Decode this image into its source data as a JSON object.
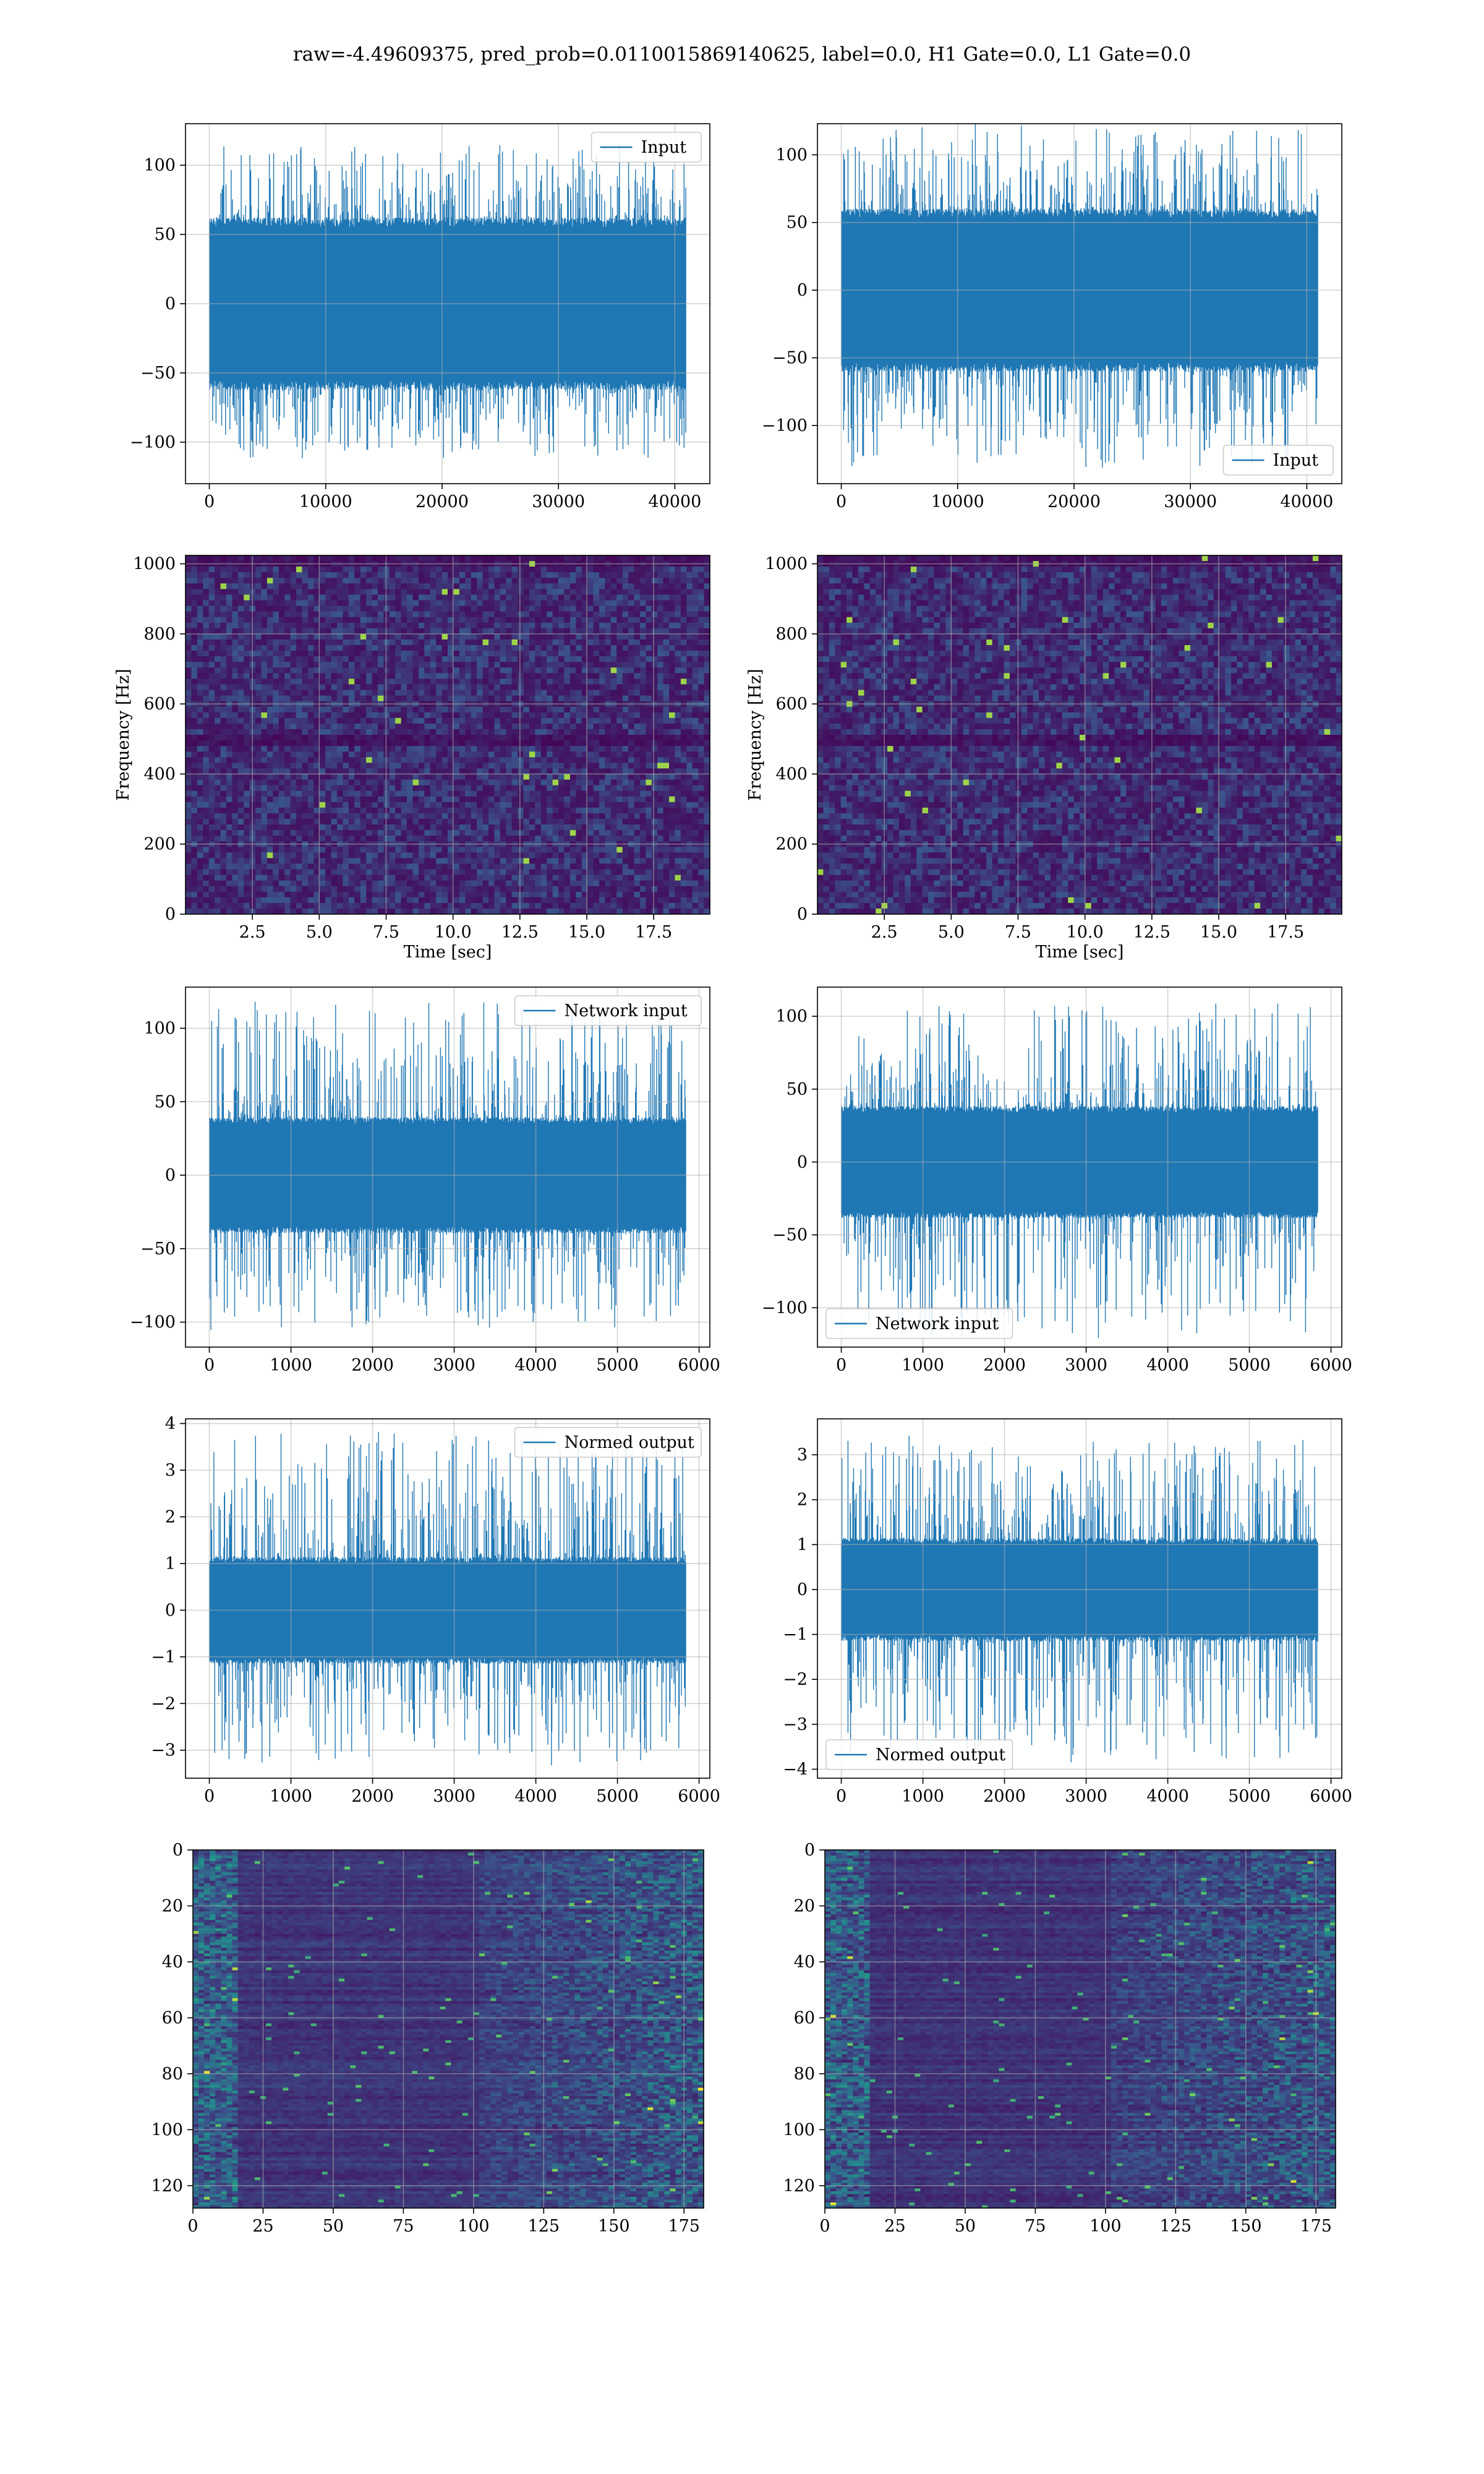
{
  "figure": {
    "title": "raw=-4.49609375, pred_prob=0.0110015869140625, label=0.0, H1 Gate=0.0, L1 Gate=0.0"
  },
  "colors": {
    "line": "#1f77b4",
    "grid": "#b0b0b0",
    "viridis_dark": "#440154",
    "viridis_mid": "#21918c",
    "viridis_bright": "#fde725"
  },
  "chart_data": [
    {
      "id": "h1-input",
      "type": "line",
      "title": "",
      "xlabel": "",
      "ylabel": "",
      "series": [
        {
          "name": "Input",
          "n_samples": 40960,
          "typical_envelope": [
            -60,
            60
          ],
          "peak_range": [
            -112,
            114
          ]
        }
      ],
      "xlim": [
        -2048,
        43008
      ],
      "ylim": [
        -130,
        130
      ],
      "xticks": [
        0,
        10000,
        20000,
        30000,
        40000
      ],
      "xtick_labels": [
        "0",
        "10000",
        "20000",
        "30000",
        "40000"
      ],
      "yticks": [
        -100,
        -50,
        0,
        50,
        100
      ],
      "ytick_labels": [
        "−100",
        "−50",
        "0",
        "50",
        "100"
      ],
      "legend": "upper right",
      "grid": true
    },
    {
      "id": "l1-input",
      "type": "line",
      "title": "",
      "xlabel": "",
      "ylabel": "",
      "series": [
        {
          "name": "Input",
          "n_samples": 40960,
          "typical_envelope": [
            -58,
            58
          ],
          "peak_range": [
            -132,
            122
          ]
        }
      ],
      "xlim": [
        -2048,
        43008
      ],
      "ylim": [
        -143,
        123
      ],
      "xticks": [
        0,
        10000,
        20000,
        30000,
        40000
      ],
      "xtick_labels": [
        "0",
        "10000",
        "20000",
        "30000",
        "40000"
      ],
      "yticks": [
        -100,
        -50,
        0,
        50,
        100
      ],
      "ytick_labels": [
        "−100",
        "−50",
        "0",
        "50",
        "100"
      ],
      "legend": "lower right",
      "grid": true
    },
    {
      "id": "h1-spectrogram",
      "type": "heatmap",
      "title": "",
      "xlabel": "Time [sec]",
      "ylabel": "Frequency [Hz]",
      "xlim": [
        0,
        19.6
      ],
      "ylim": [
        0,
        1024
      ],
      "xticks": [
        2.5,
        5.0,
        7.5,
        10.0,
        12.5,
        15.0,
        17.5
      ],
      "xtick_labels": [
        "2.5",
        "5.0",
        "7.5",
        "10.0",
        "12.5",
        "15.0",
        "17.5"
      ],
      "yticks": [
        0,
        200,
        400,
        600,
        800,
        1000
      ],
      "ytick_labels": [
        "0",
        "200",
        "400",
        "600",
        "800",
        "1000"
      ],
      "colormap": "viridis",
      "dark_band_hz": [
        500,
        1000
      ],
      "grid": true
    },
    {
      "id": "l1-spectrogram",
      "type": "heatmap",
      "title": "",
      "xlabel": "Time [sec]",
      "ylabel": "Frequency [Hz]",
      "xlim": [
        0,
        19.6
      ],
      "ylim": [
        0,
        1024
      ],
      "xticks": [
        2.5,
        5.0,
        7.5,
        10.0,
        12.5,
        15.0,
        17.5
      ],
      "xtick_labels": [
        "2.5",
        "5.0",
        "7.5",
        "10.0",
        "12.5",
        "15.0",
        "17.5"
      ],
      "yticks": [
        0,
        200,
        400,
        600,
        800,
        1000
      ],
      "ytick_labels": [
        "0",
        "200",
        "400",
        "600",
        "800",
        "1000"
      ],
      "colormap": "viridis",
      "dark_band_hz": [
        500,
        1000
      ],
      "grid": true
    },
    {
      "id": "h1-network-input",
      "type": "line",
      "title": "",
      "xlabel": "",
      "ylabel": "",
      "series": [
        {
          "name": "Network input",
          "n_samples": 5840,
          "typical_envelope": [
            -38,
            38
          ],
          "peak_range": [
            -105,
            120
          ]
        }
      ],
      "xlim": [
        -292,
        6132
      ],
      "ylim": [
        -117,
        128
      ],
      "xticks": [
        0,
        1000,
        2000,
        3000,
        4000,
        5000,
        6000
      ],
      "xtick_labels": [
        "0",
        "1000",
        "2000",
        "3000",
        "4000",
        "5000",
        "6000"
      ],
      "yticks": [
        -100,
        -50,
        0,
        50,
        100
      ],
      "ytick_labels": [
        "−100",
        "−50",
        "0",
        "50",
        "100"
      ],
      "legend": "upper right",
      "grid": true
    },
    {
      "id": "l1-network-input",
      "type": "line",
      "title": "",
      "xlabel": "",
      "ylabel": "",
      "series": [
        {
          "name": "Network input",
          "n_samples": 5840,
          "typical_envelope": [
            -37,
            37
          ],
          "peak_range": [
            -122,
            109
          ]
        }
      ],
      "xlim": [
        -292,
        6132
      ],
      "ylim": [
        -127,
        120
      ],
      "xticks": [
        0,
        1000,
        2000,
        3000,
        4000,
        5000,
        6000
      ],
      "xtick_labels": [
        "0",
        "1000",
        "2000",
        "3000",
        "4000",
        "5000",
        "6000"
      ],
      "yticks": [
        -100,
        -50,
        0,
        50,
        100
      ],
      "ytick_labels": [
        "−100",
        "−50",
        "0",
        "50",
        "100"
      ],
      "legend": "lower left",
      "grid": true
    },
    {
      "id": "h1-normed-output",
      "type": "line",
      "title": "",
      "xlabel": "",
      "ylabel": "",
      "series": [
        {
          "name": "Normed output",
          "n_samples": 5840,
          "typical_envelope": [
            -1.1,
            1.1
          ],
          "peak_range": [
            -3.3,
            3.8
          ]
        }
      ],
      "xlim": [
        -292,
        6132
      ],
      "ylim": [
        -3.6,
        4.1
      ],
      "xticks": [
        0,
        1000,
        2000,
        3000,
        4000,
        5000,
        6000
      ],
      "xtick_labels": [
        "0",
        "1000",
        "2000",
        "3000",
        "4000",
        "5000",
        "6000"
      ],
      "yticks": [
        -3,
        -2,
        -1,
        0,
        1,
        2,
        3,
        4
      ],
      "ytick_labels": [
        "−3",
        "−2",
        "−1",
        "0",
        "1",
        "2",
        "3",
        "4"
      ],
      "legend": "upper right",
      "grid": true
    },
    {
      "id": "l1-normed-output",
      "type": "line",
      "title": "",
      "xlabel": "",
      "ylabel": "",
      "series": [
        {
          "name": "Normed output",
          "n_samples": 5840,
          "typical_envelope": [
            -1.1,
            1.1
          ],
          "peak_range": [
            -3.9,
            3.4
          ]
        }
      ],
      "xlim": [
        -292,
        6132
      ],
      "ylim": [
        -4.2,
        3.8
      ],
      "xticks": [
        0,
        1000,
        2000,
        3000,
        4000,
        5000,
        6000
      ],
      "xtick_labels": [
        "0",
        "1000",
        "2000",
        "3000",
        "4000",
        "5000",
        "6000"
      ],
      "yticks": [
        -4,
        -3,
        -2,
        -1,
        0,
        1,
        2,
        3
      ],
      "ytick_labels": [
        "−4",
        "−3",
        "−2",
        "−1",
        "0",
        "1",
        "2",
        "3"
      ],
      "legend": "lower left",
      "grid": true
    },
    {
      "id": "h1-feature-map",
      "type": "heatmap",
      "title": "",
      "xlabel": "",
      "ylabel": "",
      "shape": [
        128,
        182
      ],
      "colormap": "viridis",
      "xlim": [
        0,
        182
      ],
      "ylim": [
        128,
        0
      ],
      "xticks": [
        0,
        25,
        50,
        75,
        100,
        125,
        150,
        175
      ],
      "xtick_labels": [
        "0",
        "25",
        "50",
        "75",
        "100",
        "125",
        "150",
        "175"
      ],
      "yticks": [
        0,
        20,
        40,
        60,
        80,
        100,
        120
      ],
      "ytick_labels": [
        "0",
        "20",
        "40",
        "60",
        "80",
        "100",
        "120"
      ],
      "grid": true
    },
    {
      "id": "l1-feature-map",
      "type": "heatmap",
      "title": "",
      "xlabel": "",
      "ylabel": "",
      "shape": [
        128,
        182
      ],
      "colormap": "viridis",
      "xlim": [
        0,
        182
      ],
      "ylim": [
        128,
        0
      ],
      "xticks": [
        0,
        25,
        50,
        75,
        100,
        125,
        150,
        175
      ],
      "xtick_labels": [
        "0",
        "25",
        "50",
        "75",
        "100",
        "125",
        "150",
        "175"
      ],
      "yticks": [
        0,
        20,
        40,
        60,
        80,
        100,
        120
      ],
      "ytick_labels": [
        "0",
        "20",
        "40",
        "60",
        "80",
        "100",
        "120"
      ],
      "grid": true
    }
  ]
}
